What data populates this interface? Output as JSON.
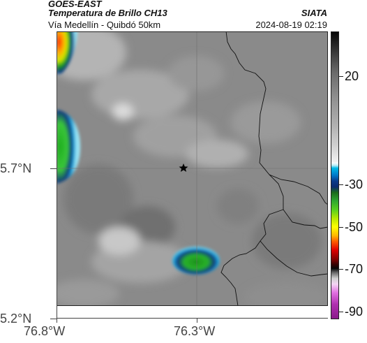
{
  "header": {
    "satellite": "GOES-EAST",
    "product": "Temperatura de Brillo CH13",
    "location": "Vía Medellín - Quibdó 50km",
    "organization": "SIATA",
    "timestamp": "2024-08-19 02:19"
  },
  "map": {
    "lat_labels": [
      "5.7°N",
      "5.2°N"
    ],
    "lon_labels": [
      "76.8°W",
      "76.3°W"
    ],
    "lat_values": [
      5.7,
      5.2
    ],
    "lon_values": [
      -76.8,
      -76.3
    ],
    "marker_icon": "star-icon"
  },
  "colorbar": {
    "labels": [
      "20",
      "-30",
      "-50",
      "-70",
      "-90"
    ],
    "values": [
      20,
      -30,
      -50,
      -70,
      -90
    ]
  }
}
